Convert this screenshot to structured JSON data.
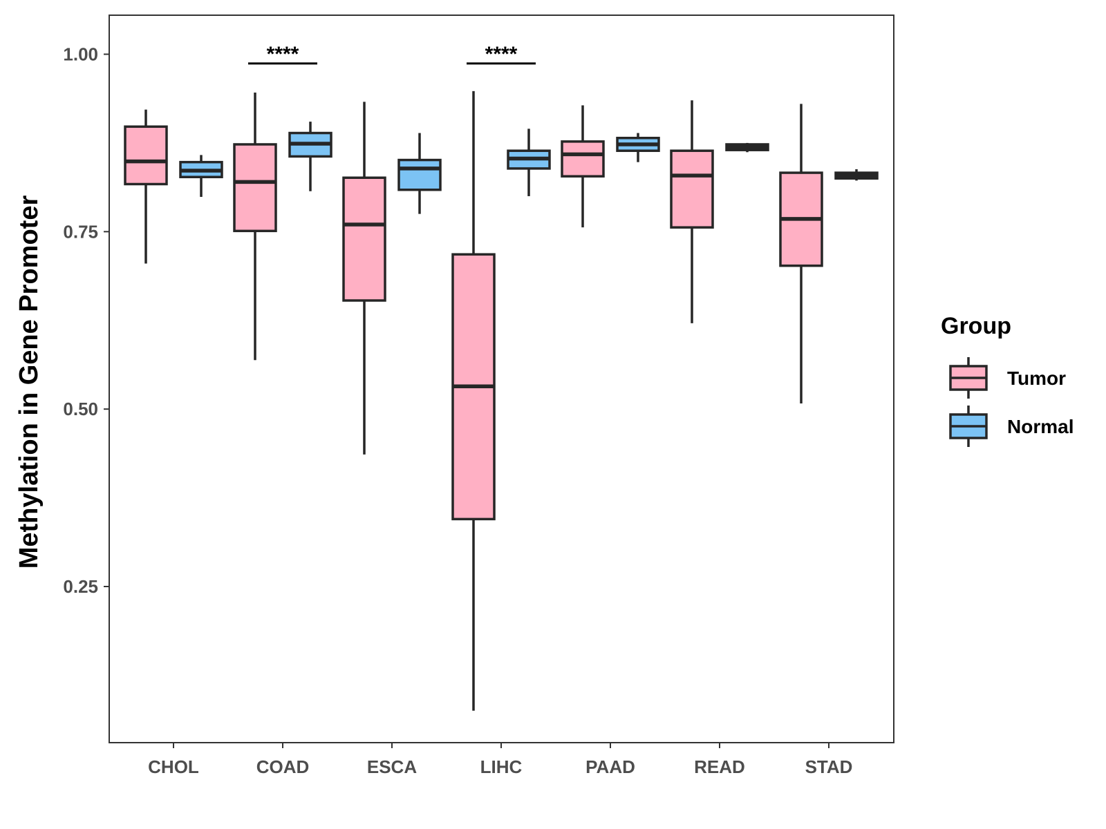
{
  "chart_data": {
    "type": "boxplot",
    "title": "",
    "xlabel": "",
    "ylabel": "Methylation in Gene Promoter",
    "ylim": [
      0.03,
      1.055
    ],
    "yticks": [
      0.25,
      0.5,
      0.75,
      1.0
    ],
    "ytick_labels": [
      "0.25",
      "0.50",
      "0.75",
      "1.00"
    ],
    "categories": [
      "CHOL",
      "COAD",
      "ESCA",
      "LIHC",
      "PAAD",
      "READ",
      "STAD"
    ],
    "legend": {
      "title": "Group",
      "position": "right",
      "entries": [
        {
          "name": "Tumor",
          "color": "#FFB0C4"
        },
        {
          "name": "Normal",
          "color": "#7CC3F4"
        }
      ]
    },
    "series": [
      {
        "name": "Tumor",
        "color": "#FFB0C4",
        "boxes": [
          {
            "category": "CHOL",
            "whisker_low": 0.705,
            "q1": 0.817,
            "median": 0.849,
            "q3": 0.898,
            "whisker_high": 0.922
          },
          {
            "category": "COAD",
            "whisker_low": 0.569,
            "q1": 0.751,
            "median": 0.82,
            "q3": 0.873,
            "whisker_high": 0.946
          },
          {
            "category": "ESCA",
            "whisker_low": 0.436,
            "q1": 0.653,
            "median": 0.76,
            "q3": 0.826,
            "whisker_high": 0.933
          },
          {
            "category": "LIHC",
            "whisker_low": 0.075,
            "q1": 0.345,
            "median": 0.532,
            "q3": 0.718,
            "whisker_high": 0.948
          },
          {
            "category": "PAAD",
            "whisker_low": 0.756,
            "q1": 0.828,
            "median": 0.859,
            "q3": 0.877,
            "whisker_high": 0.928
          },
          {
            "category": "READ",
            "whisker_low": 0.621,
            "q1": 0.756,
            "median": 0.829,
            "q3": 0.864,
            "whisker_high": 0.935
          },
          {
            "category": "STAD",
            "whisker_low": 0.508,
            "q1": 0.702,
            "median": 0.768,
            "q3": 0.833,
            "whisker_high": 0.93
          }
        ]
      },
      {
        "name": "Normal",
        "color": "#7CC3F4",
        "boxes": [
          {
            "category": "CHOL",
            "whisker_low": 0.799,
            "q1": 0.827,
            "median": 0.836,
            "q3": 0.848,
            "whisker_high": 0.858
          },
          {
            "category": "COAD",
            "whisker_low": 0.807,
            "q1": 0.856,
            "median": 0.874,
            "q3": 0.889,
            "whisker_high": 0.905
          },
          {
            "category": "ESCA",
            "whisker_low": 0.775,
            "q1": 0.809,
            "median": 0.839,
            "q3": 0.851,
            "whisker_high": 0.889
          },
          {
            "category": "LIHC",
            "whisker_low": 0.8,
            "q1": 0.839,
            "median": 0.853,
            "q3": 0.864,
            "whisker_high": 0.895
          },
          {
            "category": "PAAD",
            "whisker_low": 0.848,
            "q1": 0.864,
            "median": 0.873,
            "q3": 0.882,
            "whisker_high": 0.889
          },
          {
            "category": "READ",
            "whisker_low": 0.862,
            "q1": 0.865,
            "median": 0.869,
            "q3": 0.873,
            "whisker_high": 0.875
          },
          {
            "category": "STAD",
            "whisker_low": 0.822,
            "q1": 0.825,
            "median": 0.829,
            "q3": 0.833,
            "whisker_high": 0.838
          }
        ]
      }
    ],
    "significance": [
      {
        "category": "COAD",
        "label": "****",
        "y": 0.987
      },
      {
        "category": "LIHC",
        "label": "****",
        "y": 0.987
      }
    ],
    "grid": false
  }
}
